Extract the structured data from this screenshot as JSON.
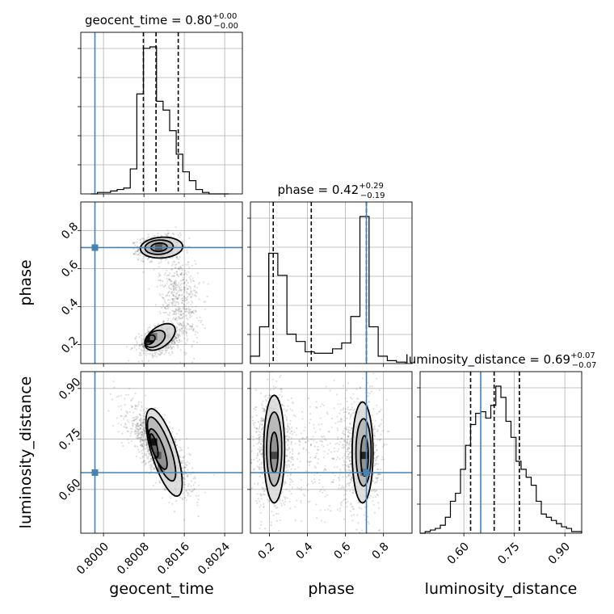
{
  "chart_data": {
    "type": "corner",
    "parameters": [
      {
        "name": "geocent_time",
        "title": {
          "prefix": "geocent_time = ",
          "value": "0.80",
          "plus": "+0.00",
          "minus": "−0.00"
        },
        "range": [
          0.79955,
          0.80275
        ],
        "ticks": [
          0.8,
          0.8008,
          0.8016,
          0.8024
        ],
        "tick_labels": [
          "0.8000",
          "0.8008",
          "0.8016",
          "0.8024"
        ],
        "truth": 0.79983,
        "quantiles": [
          0.80079,
          0.80104,
          0.80148
        ],
        "hist_edges": [
          0.79975,
          0.79988,
          0.80001,
          0.80014,
          0.80027,
          0.8004,
          0.80053,
          0.80066,
          0.80079,
          0.80092,
          0.80105,
          0.80118,
          0.80131,
          0.80144,
          0.80157,
          0.8017,
          0.80183,
          0.80196,
          0.80209,
          0.80222,
          0.80235,
          0.80248
        ],
        "hist_counts": [
          0,
          1,
          1,
          2,
          3,
          4,
          17,
          68,
          99,
          100,
          63,
          57,
          43,
          27,
          15,
          9,
          3,
          1,
          0,
          0,
          0
        ]
      },
      {
        "name": "phase",
        "title": {
          "prefix": "phase = ",
          "value": "0.42",
          "plus": "+0.29",
          "minus": "−0.19"
        },
        "range": [
          0.1,
          0.95
        ],
        "ticks": [
          0.2,
          0.4,
          0.6,
          0.8
        ],
        "tick_labels": [
          "0.2",
          "0.4",
          "0.6",
          "0.8"
        ],
        "truth": 0.71,
        "quantiles": [
          0.22,
          0.42,
          0.71
        ],
        "hist_edges": [
          0.1,
          0.148,
          0.196,
          0.244,
          0.292,
          0.34,
          0.388,
          0.436,
          0.484,
          0.532,
          0.58,
          0.628,
          0.676,
          0.724,
          0.772,
          0.82,
          0.868,
          0.916
        ],
        "hist_counts": [
          5,
          25,
          75,
          60,
          20,
          15,
          8,
          7,
          7,
          10,
          14,
          32,
          100,
          25,
          5,
          2,
          1
        ]
      },
      {
        "name": "luminosity_distance",
        "title": {
          "prefix": "luminosity_distance = ",
          "value": "0.69",
          "plus": "+0.07",
          "minus": "−0.07"
        },
        "range": [
          0.47,
          0.95
        ],
        "ticks": [
          0.6,
          0.75,
          0.9
        ],
        "tick_labels": [
          "0.60",
          "0.75",
          "0.90"
        ],
        "truth": 0.65,
        "quantiles": [
          0.62,
          0.69,
          0.765
        ],
        "hist_edges": [
          0.47,
          0.485,
          0.5,
          0.515,
          0.53,
          0.545,
          0.56,
          0.575,
          0.59,
          0.605,
          0.62,
          0.635,
          0.65,
          0.665,
          0.68,
          0.695,
          0.71,
          0.725,
          0.74,
          0.755,
          0.77,
          0.785,
          0.8,
          0.815,
          0.83,
          0.845,
          0.86,
          0.875,
          0.89,
          0.905,
          0.92,
          0.935,
          0.95
        ],
        "hist_counts": [
          0,
          1,
          2,
          3,
          5,
          10,
          20,
          25,
          40,
          55,
          68,
          75,
          76,
          72,
          80,
          92,
          85,
          70,
          60,
          45,
          40,
          35,
          30,
          20,
          12,
          10,
          8,
          6,
          4,
          3,
          1,
          1
        ]
      }
    ],
    "truth_color": "#4682b4",
    "quantile_style": "dashed",
    "grid": true
  }
}
